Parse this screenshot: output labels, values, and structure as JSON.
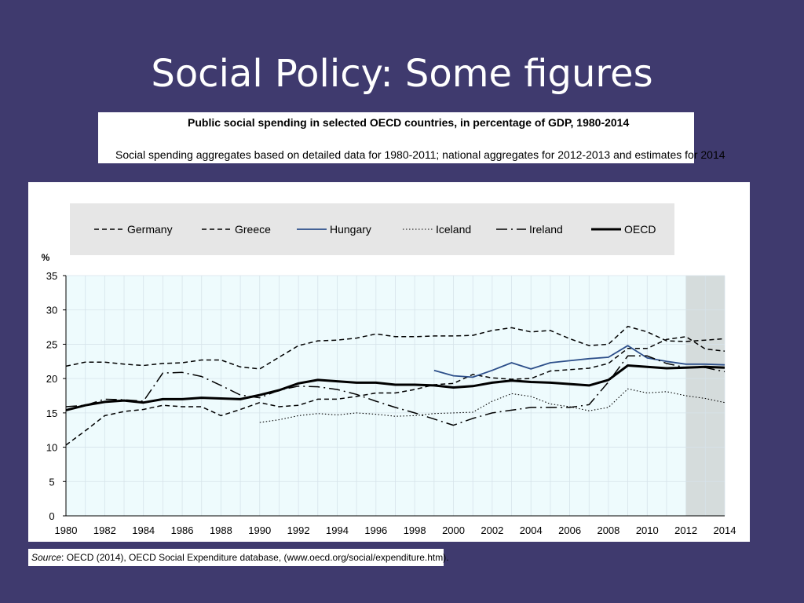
{
  "slide": {
    "title": "Social Policy: Some figures"
  },
  "caption": {
    "title": "Public social spending in selected OECD countries, in percentage of GDP, 1980-2014",
    "subtitle": "Social spending aggregates based on detailed data for 1980-2011; national aggregates for 2012-2013 and estimates for 2014"
  },
  "source": {
    "label": "Source",
    "text": ": OECD (2014), OECD Social Expenditure database,  (www.oecd.org/social/expenditure.htm)."
  },
  "colors": {
    "background": "#3f3a6e",
    "plot_bg": "#eefbfd",
    "shaded": "#d5dcdc",
    "hungary": "#2d4f8a",
    "legend_bg": "#e6e6e6"
  },
  "chart_data": {
    "type": "line",
    "ylabel": "%",
    "ylim": [
      0,
      35
    ],
    "yticks": [
      0,
      5,
      10,
      15,
      20,
      25,
      30,
      35
    ],
    "xlim": [
      1980,
      2014
    ],
    "xticks": [
      "1980",
      "1982",
      "1984",
      "1986",
      "1988",
      "1990",
      "1992",
      "1994",
      "1996",
      "1998",
      "2000",
      "2002",
      "2004",
      "2006",
      "2008",
      "2010",
      "2012",
      "2014"
    ],
    "shaded_range": [
      2012,
      2014
    ],
    "grid": true,
    "legend_position": "top",
    "series": [
      {
        "name": "Germany",
        "style": "dashed",
        "x": [
          1980,
          1981,
          1982,
          1983,
          1984,
          1985,
          1986,
          1987,
          1988,
          1989,
          1990,
          1991,
          1992,
          1993,
          1994,
          1995,
          1996,
          1997,
          1998,
          1999,
          2000,
          2001,
          2002,
          2003,
          2004,
          2005,
          2006,
          2007,
          2008,
          2009,
          2010,
          2011,
          2012,
          2013,
          2014
        ],
        "values": [
          21.8,
          22.4,
          22.4,
          22.1,
          21.9,
          22.2,
          22.3,
          22.7,
          22.7,
          21.7,
          21.4,
          23.1,
          24.8,
          25.5,
          25.6,
          25.9,
          26.5,
          26.1,
          26.1,
          26.2,
          26.2,
          26.3,
          27.0,
          27.4,
          26.8,
          27.0,
          25.8,
          24.8,
          25.0,
          27.6,
          26.8,
          25.5,
          25.4,
          25.6,
          25.8
        ]
      },
      {
        "name": "Greece",
        "style": "dashed",
        "x": [
          1980,
          1981,
          1982,
          1983,
          1984,
          1985,
          1986,
          1987,
          1988,
          1989,
          1990,
          1991,
          1992,
          1993,
          1994,
          1995,
          1996,
          1997,
          1998,
          1999,
          2000,
          2001,
          2002,
          2003,
          2004,
          2005,
          2006,
          2007,
          2008,
          2009,
          2010,
          2011,
          2012,
          2013,
          2014
        ],
        "values": [
          10.3,
          12.4,
          14.6,
          15.2,
          15.5,
          16.1,
          15.9,
          15.9,
          14.6,
          15.5,
          16.5,
          15.9,
          16.1,
          17.0,
          17.0,
          17.4,
          17.9,
          17.9,
          18.4,
          19.1,
          19.3,
          20.6,
          20.1,
          19.9,
          20.0,
          21.1,
          21.3,
          21.5,
          22.2,
          24.4,
          24.4,
          25.7,
          26.1,
          24.3,
          24.0
        ]
      },
      {
        "name": "Hungary",
        "style": "solid-blue",
        "x": [
          1999,
          2000,
          2001,
          2002,
          2003,
          2004,
          2005,
          2006,
          2007,
          2008,
          2009,
          2010,
          2011,
          2012,
          2013,
          2014
        ],
        "values": [
          21.2,
          20.4,
          20.2,
          21.2,
          22.3,
          21.4,
          22.3,
          22.6,
          22.9,
          23.1,
          24.8,
          23.0,
          22.5,
          22.1,
          22.1,
          22.0
        ]
      },
      {
        "name": "Iceland",
        "style": "dotted",
        "x": [
          1990,
          1991,
          1992,
          1993,
          1994,
          1995,
          1996,
          1997,
          1998,
          1999,
          2000,
          2001,
          2002,
          2003,
          2004,
          2005,
          2006,
          2007,
          2008,
          2009,
          2010,
          2011,
          2012,
          2013,
          2014
        ],
        "values": [
          13.6,
          14.0,
          14.6,
          14.9,
          14.7,
          15.0,
          14.8,
          14.5,
          14.6,
          14.9,
          15.0,
          15.1,
          16.7,
          17.8,
          17.4,
          16.3,
          15.9,
          15.3,
          15.8,
          18.5,
          17.9,
          18.1,
          17.5,
          17.1,
          16.5
        ]
      },
      {
        "name": "Ireland",
        "style": "dash-dot",
        "x": [
          1980,
          1981,
          1982,
          1983,
          1984,
          1985,
          1986,
          1987,
          1988,
          1989,
          1990,
          1991,
          1992,
          1993,
          1994,
          1995,
          1996,
          1997,
          1998,
          1999,
          2000,
          2001,
          2002,
          2003,
          2004,
          2005,
          2006,
          2007,
          2008,
          2009,
          2010,
          2011,
          2012,
          2013,
          2014
        ],
        "values": [
          15.9,
          16.1,
          17.0,
          16.9,
          16.7,
          20.8,
          20.9,
          20.3,
          19.0,
          17.6,
          17.2,
          18.3,
          18.9,
          18.8,
          18.4,
          17.7,
          16.7,
          15.8,
          15.0,
          14.1,
          13.2,
          14.2,
          15.0,
          15.4,
          15.8,
          15.8,
          15.8,
          16.2,
          19.5,
          23.3,
          23.3,
          22.2,
          21.6,
          21.6,
          21.0
        ]
      },
      {
        "name": "OECD",
        "style": "solid-bold",
        "x": [
          1980,
          1981,
          1982,
          1983,
          1984,
          1985,
          1986,
          1987,
          1988,
          1989,
          1990,
          1991,
          1992,
          1993,
          1994,
          1995,
          1996,
          1997,
          1998,
          1999,
          2000,
          2001,
          2002,
          2003,
          2004,
          2005,
          2006,
          2007,
          2008,
          2009,
          2010,
          2011,
          2012,
          2013,
          2014
        ],
        "values": [
          15.4,
          16.1,
          16.6,
          16.8,
          16.5,
          17.0,
          17.0,
          17.2,
          17.1,
          17.0,
          17.6,
          18.3,
          19.3,
          19.8,
          19.6,
          19.4,
          19.4,
          19.1,
          19.1,
          19.0,
          18.7,
          18.9,
          19.4,
          19.7,
          19.5,
          19.4,
          19.2,
          19.0,
          19.8,
          21.9,
          21.7,
          21.5,
          21.6,
          21.7,
          21.6
        ]
      }
    ]
  }
}
